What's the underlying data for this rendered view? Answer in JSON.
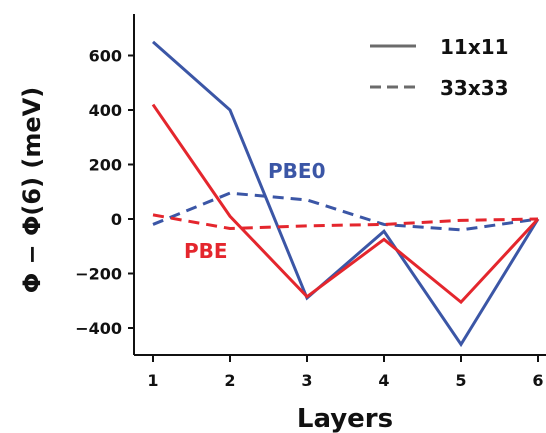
{
  "chart_data": {
    "type": "line",
    "xlabel": "Layers",
    "ylabel": "Φ − Φ(6) (meV)",
    "x": [
      1,
      2,
      3,
      4,
      5,
      6
    ],
    "xticks": [
      "1",
      "2",
      "3",
      "4",
      "5",
      "6"
    ],
    "yticks": [
      "-400",
      "-200",
      "0",
      "200",
      "400",
      "600"
    ],
    "ylim": [
      -500,
      750
    ],
    "xlim": [
      0.8,
      6.1
    ],
    "grid": false,
    "legend": {
      "placement": "top-right",
      "entries": [
        {
          "label": "11x11",
          "style": "solid"
        },
        {
          "label": "33x33",
          "style": "dashed"
        }
      ]
    },
    "annotations": [
      {
        "text": "PBE0",
        "color": "#3b56a6"
      },
      {
        "text": "PBE",
        "color": "#e4262d"
      }
    ],
    "series": [
      {
        "method": "PBE0",
        "kgrid": "11x11",
        "style": "solid",
        "color": "#3b56a6",
        "values": [
          650,
          400,
          -290,
          -45,
          -460,
          0
        ]
      },
      {
        "method": "PBE",
        "kgrid": "11x11",
        "style": "solid",
        "color": "#e4262d",
        "values": [
          420,
          10,
          -285,
          -75,
          -305,
          0
        ]
      },
      {
        "method": "PBE0",
        "kgrid": "33x33",
        "style": "dashed",
        "color": "#3b56a6",
        "values": [
          -20,
          95,
          70,
          -20,
          -40,
          0
        ]
      },
      {
        "method": "PBE",
        "kgrid": "33x33",
        "style": "dashed",
        "color": "#e4262d",
        "values": [
          15,
          -35,
          -25,
          -20,
          -5,
          0
        ]
      }
    ]
  }
}
